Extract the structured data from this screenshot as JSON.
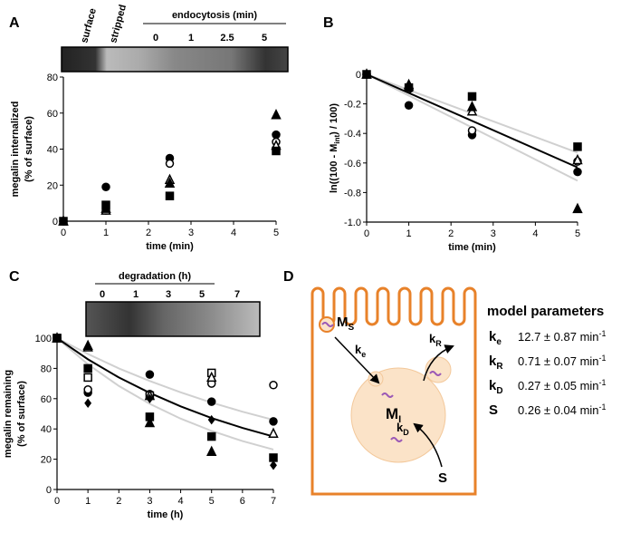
{
  "panels": [
    "A",
    "B",
    "C",
    "D"
  ],
  "blots": [
    {
      "labels": [
        "surface",
        "stripped",
        "endocytosis (min)",
        "0",
        "1",
        "2.5",
        "5"
      ]
    },
    {
      "labels": [
        "degradation (h)",
        "0",
        "1",
        "3",
        "5",
        "7"
      ]
    }
  ],
  "chart_data": [
    {
      "type": "scatter",
      "xlabel": "time (min)",
      "ylabel": [
        "megalin internalized",
        "(% of surface)"
      ],
      "xlim": [
        0,
        5
      ],
      "ylim": [
        0,
        80
      ],
      "xticks": [
        0,
        1,
        2,
        3,
        4,
        5
      ],
      "yticks": [
        0,
        20,
        40,
        60,
        80
      ],
      "series": [
        {
          "marker": "circle",
          "filled": true,
          "color": "#000000",
          "x": [
            0,
            1,
            2.5,
            5
          ],
          "values": [
            0,
            19,
            35,
            48
          ]
        },
        {
          "marker": "circle",
          "filled": false,
          "color": "#000000",
          "x": [
            0,
            1,
            2.5,
            5
          ],
          "values": [
            0,
            6,
            32,
            44
          ]
        },
        {
          "marker": "triangle",
          "filled": false,
          "color": "#000000",
          "x": [
            0,
            1,
            2.5,
            5
          ],
          "values": [
            0,
            6,
            23,
            42
          ]
        },
        {
          "marker": "triangle",
          "filled": true,
          "color": "#000000",
          "x": [
            0,
            1,
            2.5,
            5
          ],
          "values": [
            0,
            7,
            21,
            59
          ]
        },
        {
          "marker": "square",
          "filled": true,
          "color": "#000000",
          "x": [
            0,
            1,
            2.5,
            5
          ],
          "values": [
            0,
            9,
            14,
            39
          ]
        }
      ]
    },
    {
      "type": "scatter",
      "xlabel": "time (min)",
      "ylabel": {
        "text": "ln((100 - M",
        "sub": "int",
        "tail": ") / 100)"
      },
      "xlim": [
        0,
        5
      ],
      "ylim": [
        -1,
        0
      ],
      "xticks": [
        0,
        1,
        2,
        3,
        4,
        5
      ],
      "yticks": [
        0,
        -0.2,
        -0.4,
        -0.6,
        -0.8,
        {
          "value": -1,
          "label": "-1.0"
        }
      ],
      "series": [
        {
          "marker": "line",
          "color": "#d0d0d0",
          "x": [
            0,
            5
          ],
          "values": [
            0,
            -0.53
          ]
        },
        {
          "marker": "line",
          "color": "#d0d0d0",
          "x": [
            0,
            5
          ],
          "values": [
            0,
            -0.72
          ]
        },
        {
          "marker": "line",
          "color": "#000000",
          "x": [
            0,
            5
          ],
          "values": [
            0,
            -0.63
          ]
        },
        {
          "marker": "circle",
          "filled": true,
          "color": "#000000",
          "x": [
            0,
            1,
            2.5,
            5
          ],
          "values": [
            0,
            -0.21,
            -0.41,
            -0.66
          ]
        },
        {
          "marker": "circle",
          "filled": false,
          "color": "#000000",
          "x": [
            0,
            1,
            2.5,
            5
          ],
          "values": [
            0,
            -0.1,
            -0.38,
            -0.59
          ]
        },
        {
          "marker": "triangle",
          "filled": false,
          "color": "#000000",
          "x": [
            0,
            1,
            2.5,
            5
          ],
          "values": [
            0,
            -0.08,
            -0.25,
            -0.58
          ]
        },
        {
          "marker": "triangle",
          "filled": true,
          "color": "#000000",
          "x": [
            0,
            1,
            2.5,
            5
          ],
          "values": [
            0,
            -0.07,
            -0.22,
            -0.91
          ]
        },
        {
          "marker": "square",
          "filled": true,
          "color": "#000000",
          "x": [
            0,
            1,
            2.5,
            5
          ],
          "values": [
            0,
            -0.09,
            -0.15,
            -0.49
          ]
        }
      ]
    },
    {
      "type": "scatter",
      "xlabel": "time (h)",
      "ylabel": [
        "megalin remaining",
        "(% of surface)"
      ],
      "xlim": [
        0,
        7
      ],
      "ylim": [
        0,
        100
      ],
      "xticks": [
        0,
        1,
        2,
        3,
        4,
        5,
        6,
        7
      ],
      "yticks": [
        0,
        20,
        40,
        60,
        80,
        100
      ],
      "series": [
        {
          "marker": "line",
          "color": "#d0d0d0",
          "x": [
            0,
            1,
            2,
            3,
            4,
            5,
            6,
            7
          ],
          "values": [
            100,
            89.5,
            80,
            71.7,
            64.2,
            57.4,
            51.4,
            46
          ]
        },
        {
          "marker": "line",
          "color": "#d0d0d0",
          "x": [
            0,
            1,
            2,
            3,
            4,
            5,
            6,
            7
          ],
          "values": [
            100,
            82.7,
            68.4,
            56.6,
            46.8,
            38.7,
            32,
            26.4
          ]
        },
        {
          "marker": "line",
          "color": "#000000",
          "x": [
            0,
            1,
            2,
            3,
            4,
            5,
            6,
            7
          ],
          "values": [
            100,
            86,
            74,
            63.8,
            54.9,
            47.2,
            40.7,
            35
          ]
        },
        {
          "marker": "circle",
          "filled": true,
          "color": "#000000",
          "x": [
            0,
            1,
            3,
            5,
            7
          ],
          "values": [
            100,
            64,
            76,
            58,
            45
          ]
        },
        {
          "marker": "circle",
          "filled": false,
          "color": "#000000",
          "x": [
            0,
            1,
            3,
            5,
            7
          ],
          "values": [
            100,
            66,
            63,
            70,
            69
          ]
        },
        {
          "marker": "square",
          "filled": false,
          "color": "#000000",
          "x": [
            0,
            1,
            3,
            5,
            7
          ],
          "values": [
            100,
            74,
            62,
            77,
            null
          ]
        },
        {
          "marker": "triangle",
          "filled": false,
          "color": "#000000",
          "x": [
            0,
            1,
            3,
            5,
            7
          ],
          "values": [
            100,
            94,
            62,
            74,
            37
          ]
        },
        {
          "marker": "triangle",
          "filled": true,
          "color": "#000000",
          "x": [
            0,
            1,
            3,
            5,
            7
          ],
          "values": [
            100,
            95,
            44,
            25,
            null
          ]
        },
        {
          "marker": "square",
          "filled": true,
          "color": "#000000",
          "x": [
            0,
            1,
            3,
            5,
            7
          ],
          "values": [
            100,
            80,
            48,
            35,
            21
          ]
        },
        {
          "marker": "diamond",
          "filled": true,
          "color": "#000000",
          "x": [
            0,
            1,
            3,
            5,
            7
          ],
          "values": [
            100,
            57,
            60,
            46,
            16
          ]
        }
      ]
    }
  ],
  "diagram": {
    "ms": {
      "main": "M",
      "sub": "S"
    },
    "ke": {
      "main": "k",
      "sub": "e"
    },
    "kr": {
      "main": "k",
      "sub": "R"
    },
    "mi": {
      "main": "M",
      "sub": "I"
    },
    "kd": {
      "main": "k",
      "sub": "D"
    },
    "s": "S",
    "title": "model parameters",
    "rows": [
      {
        "sym": "k",
        "sub": "e",
        "value": "12.7 ± 0.87 min",
        "sup": "-1"
      },
      {
        "sym": "k",
        "sub": "R",
        "value": "0.71 ± 0.07 min",
        "sup": "-1"
      },
      {
        "sym": "k",
        "sub": "D",
        "value": "0.27 ± 0.05 min",
        "sup": "-1"
      },
      {
        "sym": "S",
        "value": "0.26 ± 0.04 min",
        "sup": "-1"
      }
    ]
  }
}
